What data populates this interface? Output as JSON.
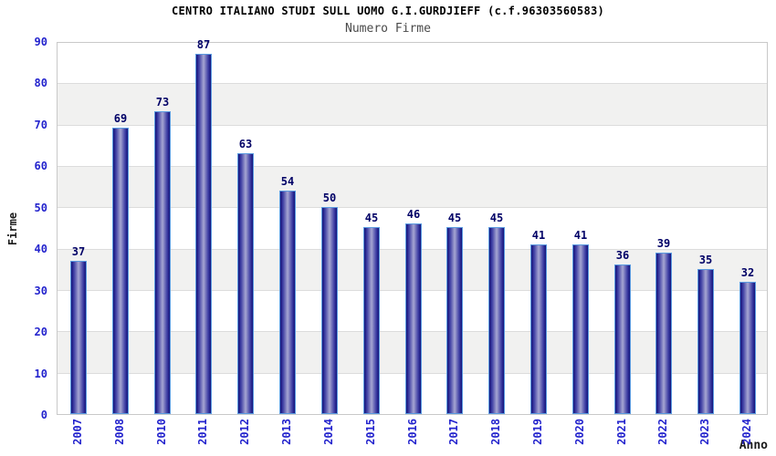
{
  "header": {
    "title": "CENTRO ITALIANO STUDI SULL UOMO G.I.GURDJIEFF (c.f.96303560583)",
    "subtitle": "Numero Firme"
  },
  "chart_data": {
    "type": "bar",
    "title": "CENTRO ITALIANO STUDI SULL UOMO G.I.GURDJIEFF (c.f.96303560583)",
    "subtitle": "Numero Firme",
    "xlabel": "Anno",
    "ylabel": "Firme",
    "categories": [
      "2007",
      "2008",
      "2010",
      "2011",
      "2012",
      "2013",
      "2014",
      "2015",
      "2016",
      "2017",
      "2018",
      "2019",
      "2020",
      "2021",
      "2022",
      "2023",
      "2024"
    ],
    "values": [
      37,
      69,
      73,
      87,
      63,
      54,
      50,
      45,
      46,
      45,
      45,
      41,
      41,
      36,
      39,
      35,
      32
    ],
    "ylim": [
      0,
      90
    ],
    "ytick_step": 10,
    "grid": true,
    "legend_position": "none",
    "colors": {
      "bar_dark": "#14147a",
      "bar_mid": "#3d3da3",
      "bar_light": "#a6a6d2",
      "bar_border": "#5b9be0",
      "tick_label": "#2323cd",
      "value_label": "#000066",
      "band": "#f1f1f0",
      "gridline": "#dcdcdc",
      "plot_border": "#c9c9c9",
      "title": "#000000",
      "subtitle": "#4a4a4a"
    }
  }
}
